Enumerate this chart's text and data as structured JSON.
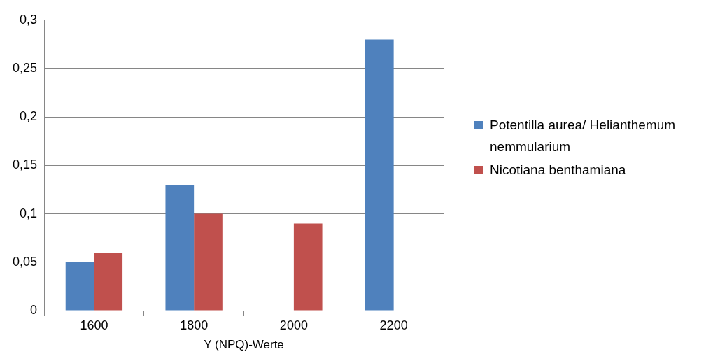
{
  "chart_data": {
    "type": "bar",
    "xlabel": "Y (NPQ)-Werte",
    "categories": [
      "1600",
      "1800",
      "2000",
      "2200"
    ],
    "series": [
      {
        "name": "Potentilla aurea/ Helianthemum nemmularium",
        "color": "#4f81bd",
        "values": [
          0.05,
          0.13,
          null,
          0.28
        ]
      },
      {
        "name": "Nicotiana benthamiana",
        "color": "#c0504d",
        "values": [
          0.06,
          0.1,
          0.09,
          null
        ]
      }
    ],
    "ylim": [
      0,
      0.3
    ],
    "yticks": [
      {
        "value": 0,
        "label": "0"
      },
      {
        "value": 0.05,
        "label": "0,05"
      },
      {
        "value": 0.1,
        "label": "0,1"
      },
      {
        "value": 0.15,
        "label": "0,15"
      },
      {
        "value": 0.2,
        "label": "0,2"
      },
      {
        "value": 0.25,
        "label": "0,25"
      },
      {
        "value": 0.3,
        "label": "0,3"
      }
    ],
    "grid": "y",
    "legend": "right"
  }
}
